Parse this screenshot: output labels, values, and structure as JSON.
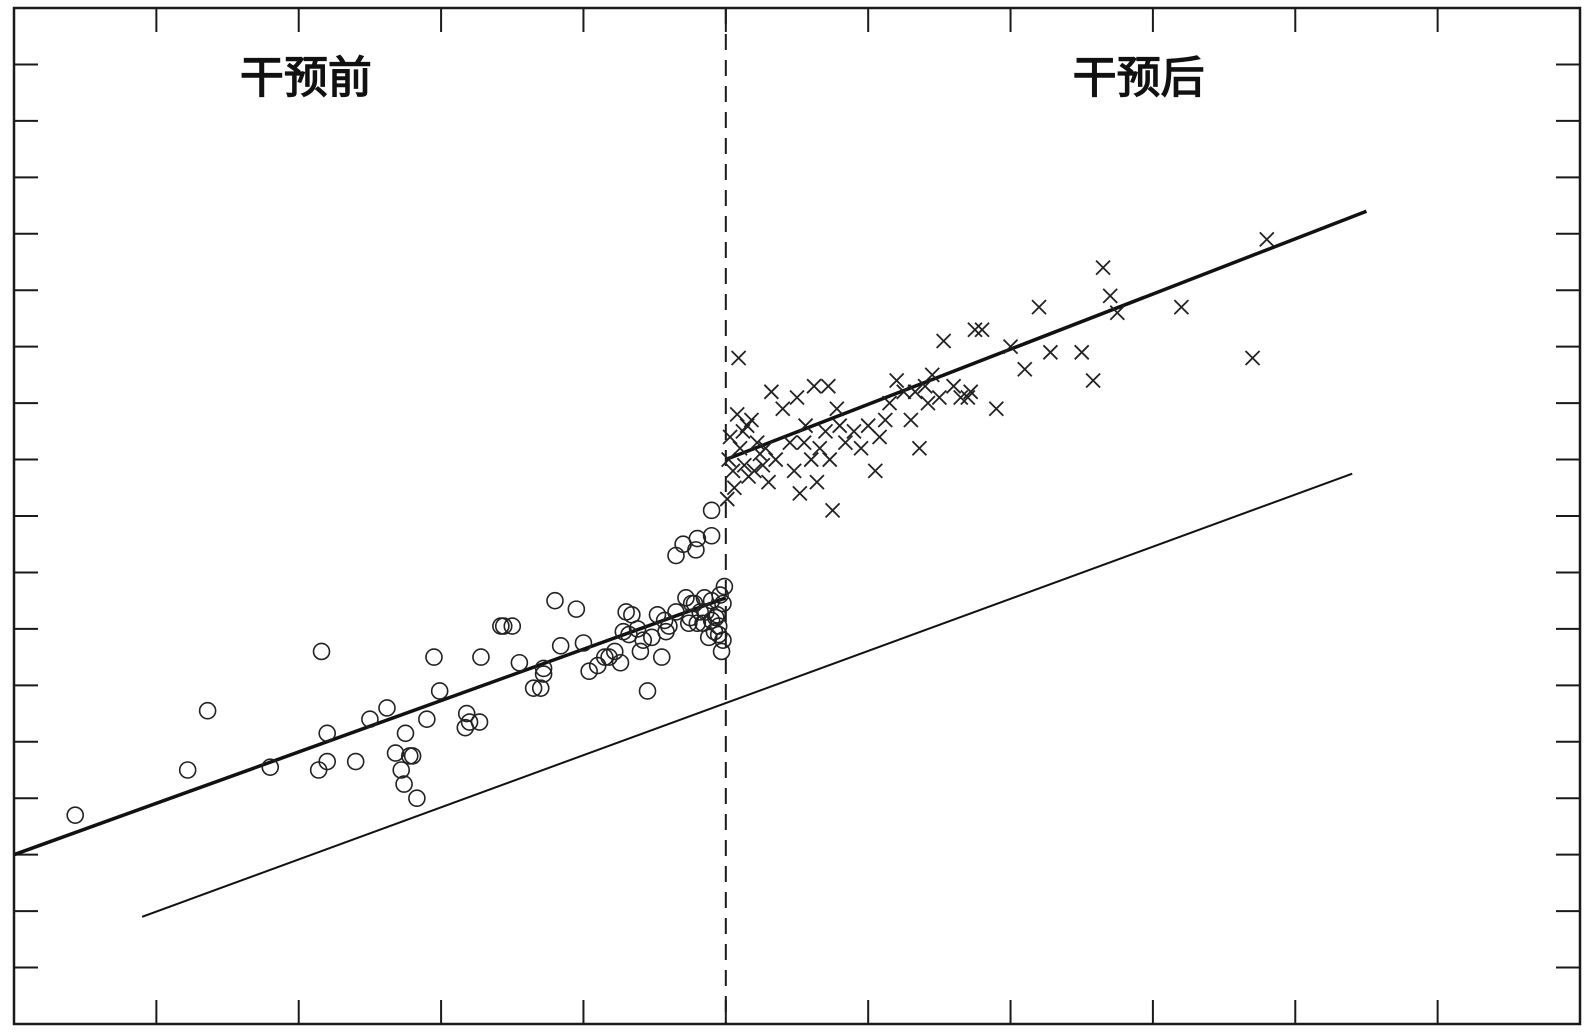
{
  "chart_data": {
    "type": "scatter",
    "title": "",
    "xlabel": "",
    "ylabel": "",
    "xlim": [
      -5,
      6
    ],
    "ylim": [
      0,
      18
    ],
    "grid": false,
    "x_ticks": [
      -5,
      -4,
      -3,
      -2,
      -1,
      0,
      1,
      2,
      3,
      4,
      5
    ],
    "y_ticks": [
      1,
      2,
      3,
      4,
      5,
      6,
      7,
      8,
      9,
      10,
      11,
      12,
      13,
      14,
      15,
      16,
      17
    ],
    "cutoff_x": 0,
    "annotations": [
      {
        "text": "干预前",
        "x": -2.95,
        "y": 16.5
      },
      {
        "text": "干预后",
        "x": 2.9,
        "y": 16.5
      }
    ],
    "series": [
      {
        "marker": "circle",
        "points": [
          [
            -4.57,
            3.7
          ],
          [
            -3.78,
            4.5
          ],
          [
            -3.64,
            5.55
          ],
          [
            -3.2,
            4.55
          ],
          [
            -2.84,
            6.6
          ],
          [
            -2.86,
            4.5
          ],
          [
            -2.8,
            4.65
          ],
          [
            -2.8,
            5.15
          ],
          [
            -2.6,
            4.65
          ],
          [
            -2.5,
            5.4
          ],
          [
            -2.38,
            5.6
          ],
          [
            -2.32,
            4.8
          ],
          [
            -2.28,
            4.5
          ],
          [
            -2.26,
            4.25
          ],
          [
            -2.25,
            5.15
          ],
          [
            -2.2,
            4.75
          ],
          [
            -2.22,
            4.75
          ],
          [
            -2.17,
            4.0
          ],
          [
            -2.1,
            5.4
          ],
          [
            -2.05,
            6.5
          ],
          [
            -2.01,
            5.9
          ],
          [
            -1.83,
            5.25
          ],
          [
            -1.82,
            5.5
          ],
          [
            -1.8,
            5.35
          ],
          [
            -1.73,
            5.35
          ],
          [
            -1.72,
            6.5
          ],
          [
            -1.58,
            7.05
          ],
          [
            -1.56,
            7.05
          ],
          [
            -1.5,
            7.05
          ],
          [
            -1.45,
            6.4
          ],
          [
            -1.35,
            5.95
          ],
          [
            -1.3,
            5.95
          ],
          [
            -1.28,
            6.3
          ],
          [
            -1.28,
            6.2
          ],
          [
            -1.2,
            7.5
          ],
          [
            -1.16,
            6.7
          ],
          [
            -1.05,
            7.35
          ],
          [
            -1.0,
            6.75
          ],
          [
            -0.96,
            6.25
          ],
          [
            -0.9,
            6.35
          ],
          [
            -0.85,
            6.5
          ],
          [
            -0.82,
            6.5
          ],
          [
            -0.78,
            6.6
          ],
          [
            -0.74,
            6.4
          ],
          [
            -0.72,
            6.95
          ],
          [
            -0.7,
            7.3
          ],
          [
            -0.68,
            6.9
          ],
          [
            -0.66,
            7.25
          ],
          [
            -0.62,
            7.0
          ],
          [
            -0.6,
            6.6
          ],
          [
            -0.58,
            6.8
          ],
          [
            -0.55,
            5.9
          ],
          [
            -0.52,
            6.85
          ],
          [
            -0.48,
            7.25
          ],
          [
            -0.45,
            6.5
          ],
          [
            -0.43,
            7.15
          ],
          [
            -0.42,
            6.95
          ],
          [
            -0.4,
            7.05
          ],
          [
            -0.35,
            7.3
          ],
          [
            -0.3,
            8.5
          ],
          [
            -0.28,
            7.55
          ],
          [
            -0.26,
            7.1
          ],
          [
            -0.25,
            7.2
          ],
          [
            -0.24,
            7.45
          ],
          [
            -0.21,
            8.4
          ],
          [
            -0.22,
            7.45
          ],
          [
            -0.2,
            7.1
          ],
          [
            -0.18,
            7.3
          ],
          [
            -0.16,
            7.1
          ],
          [
            -0.15,
            7.55
          ],
          [
            -0.14,
            7.3
          ],
          [
            -0.12,
            6.85
          ],
          [
            -0.1,
            7.15
          ],
          [
            -0.1,
            7.5
          ],
          [
            -0.08,
            6.95
          ],
          [
            -0.06,
            7.25
          ],
          [
            -0.05,
            7.05
          ],
          [
            -0.04,
            7.6
          ],
          [
            -0.03,
            6.6
          ],
          [
            -0.02,
            7.45
          ],
          [
            -0.02,
            6.8
          ],
          [
            -0.01,
            7.75
          ],
          [
            -0.35,
            8.3
          ],
          [
            -0.1,
            8.65
          ],
          [
            -0.1,
            9.1
          ],
          [
            -0.2,
            8.6
          ],
          [
            -0.05,
            6.9
          ],
          [
            -0.07,
            7.2
          ]
        ]
      },
      {
        "marker": "cross",
        "points": [
          [
            0.01,
            9.3
          ],
          [
            0.02,
            10.0
          ],
          [
            0.03,
            10.4
          ],
          [
            0.05,
            9.8
          ],
          [
            0.06,
            9.5
          ],
          [
            0.08,
            10.8
          ],
          [
            0.09,
            11.8
          ],
          [
            0.1,
            10.2
          ],
          [
            0.12,
            10.5
          ],
          [
            0.13,
            9.9
          ],
          [
            0.15,
            10.6
          ],
          [
            0.16,
            9.7
          ],
          [
            0.18,
            10.7
          ],
          [
            0.2,
            9.8
          ],
          [
            0.22,
            10.3
          ],
          [
            0.24,
            10.1
          ],
          [
            0.26,
            9.9
          ],
          [
            0.28,
            10.2
          ],
          [
            0.3,
            9.6
          ],
          [
            0.32,
            11.2
          ],
          [
            0.35,
            10.0
          ],
          [
            0.4,
            10.9
          ],
          [
            0.45,
            10.3
          ],
          [
            0.48,
            9.8
          ],
          [
            0.5,
            11.1
          ],
          [
            0.52,
            9.4
          ],
          [
            0.55,
            10.3
          ],
          [
            0.56,
            10.6
          ],
          [
            0.6,
            10.0
          ],
          [
            0.62,
            11.3
          ],
          [
            0.64,
            9.6
          ],
          [
            0.66,
            10.2
          ],
          [
            0.7,
            10.5
          ],
          [
            0.72,
            11.3
          ],
          [
            0.73,
            10.0
          ],
          [
            0.75,
            9.1
          ],
          [
            0.78,
            10.9
          ],
          [
            0.8,
            10.6
          ],
          [
            0.84,
            10.3
          ],
          [
            0.9,
            10.5
          ],
          [
            0.95,
            10.2
          ],
          [
            1.0,
            10.6
          ],
          [
            1.05,
            9.8
          ],
          [
            1.08,
            10.4
          ],
          [
            1.12,
            10.7
          ],
          [
            1.15,
            11.0
          ],
          [
            1.2,
            11.4
          ],
          [
            1.25,
            11.2
          ],
          [
            1.3,
            10.7
          ],
          [
            1.33,
            11.2
          ],
          [
            1.36,
            10.2
          ],
          [
            1.4,
            11.3
          ],
          [
            1.42,
            11.0
          ],
          [
            1.45,
            11.5
          ],
          [
            1.5,
            11.1
          ],
          [
            1.53,
            12.1
          ],
          [
            1.6,
            11.3
          ],
          [
            1.65,
            11.1
          ],
          [
            1.7,
            11.1
          ],
          [
            1.72,
            11.2
          ],
          [
            1.75,
            12.3
          ],
          [
            1.8,
            12.3
          ],
          [
            1.9,
            10.9
          ],
          [
            2.0,
            12.0
          ],
          [
            2.1,
            11.6
          ],
          [
            2.2,
            12.7
          ],
          [
            2.28,
            11.9
          ],
          [
            2.5,
            11.9
          ],
          [
            2.58,
            11.4
          ],
          [
            2.65,
            13.4
          ],
          [
            2.7,
            12.9
          ],
          [
            2.75,
            12.6
          ],
          [
            3.2,
            12.7
          ],
          [
            3.7,
            11.8
          ],
          [
            3.8,
            13.9
          ]
        ]
      }
    ],
    "lines": [
      {
        "style": "thick",
        "x": [
          -5,
          0
        ],
        "y": [
          3.0,
          7.55
        ]
      },
      {
        "style": "thick",
        "x": [
          0,
          4.5
        ],
        "y": [
          10.0,
          14.4
        ]
      },
      {
        "style": "thin",
        "x": [
          -4.1,
          4.4
        ],
        "y": [
          1.9,
          9.75
        ]
      }
    ]
  }
}
